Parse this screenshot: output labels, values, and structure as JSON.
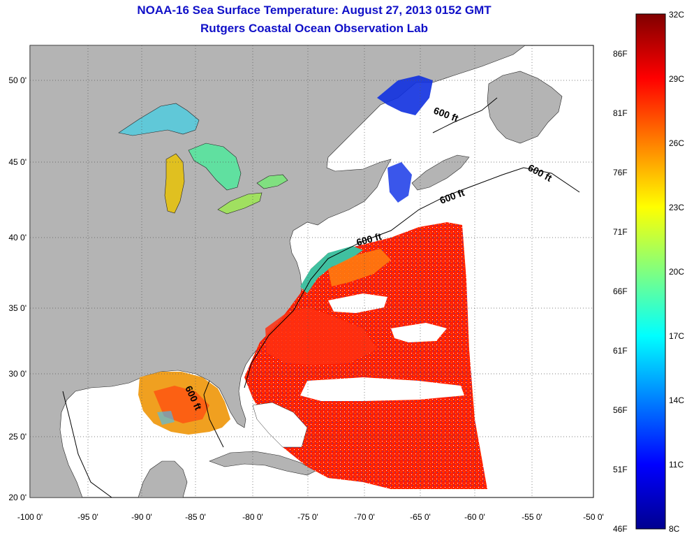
{
  "title": "NOAA-16 Sea Surface Temperature:  August 27, 2013 0152 GMT",
  "subtitle": "Rutgers Coastal Ocean Observation Lab",
  "map": {
    "lon_labels": [
      "-100 0'",
      "-95 0'",
      "-90 0'",
      "-85 0'",
      "-80 0'",
      "-75 0'",
      "-70 0'",
      "-65 0'",
      "-60 0'",
      "-55 0'",
      "-50 0'"
    ],
    "lat_labels": [
      "50 0'",
      "45 0'",
      "40 0'",
      "35 0'",
      "30 0'",
      "25 0'",
      "20 0'"
    ],
    "lon_range": [
      -100,
      -50
    ],
    "lat_range": [
      20,
      52
    ],
    "contour_label": "600 ft",
    "colors": {
      "land": "#b4b4b4",
      "ocean_nodata": "#ffffff",
      "grid": "#555555"
    }
  },
  "colorbar": {
    "range_c": [
      8,
      32
    ],
    "celsius_labels": [
      "32C",
      "29C",
      "26C",
      "23C",
      "20C",
      "17C",
      "14C",
      "11C",
      "8C"
    ],
    "fahrenheit_labels": [
      "86F",
      "81F",
      "76F",
      "71F",
      "66F",
      "61F",
      "56F",
      "51F",
      "46F"
    ],
    "colormap": [
      "#00008f",
      "#0000ff",
      "#0080ff",
      "#00ffff",
      "#80ff80",
      "#ffff00",
      "#ff8000",
      "#ff0000",
      "#800000"
    ]
  }
}
